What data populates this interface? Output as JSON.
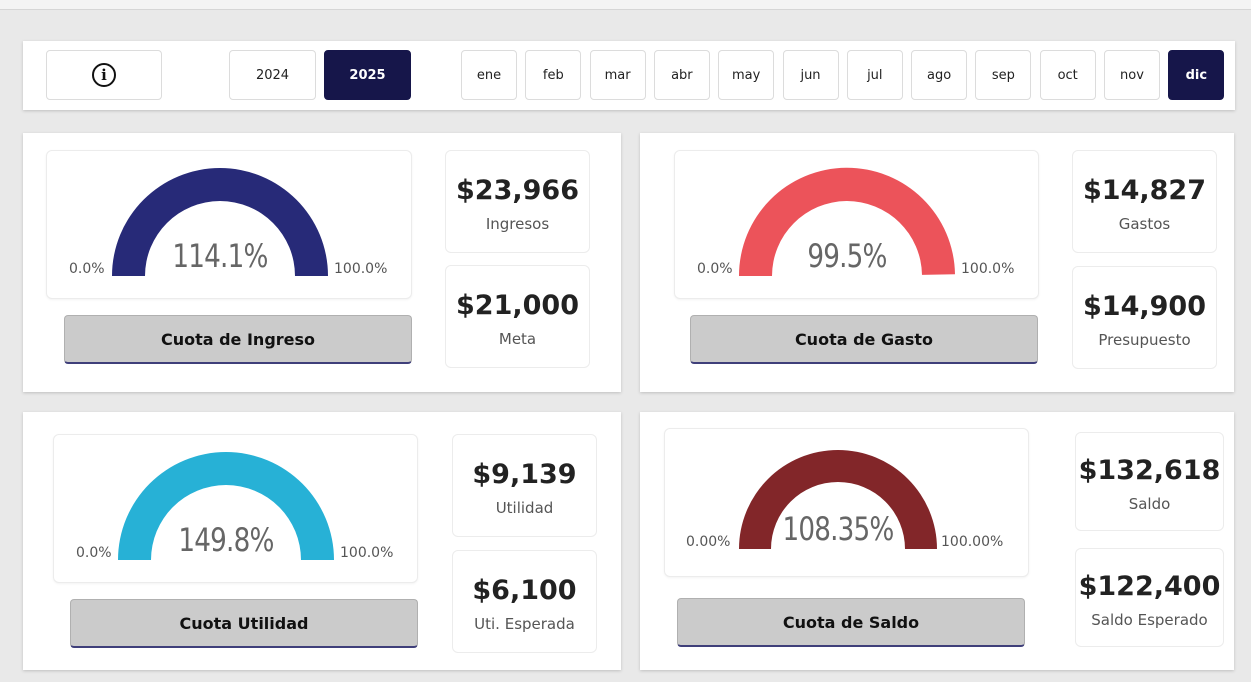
{
  "filters": {
    "info_glyph": "i",
    "years": [
      {
        "label": "2024",
        "selected": false
      },
      {
        "label": "2025",
        "selected": true
      }
    ],
    "months": [
      {
        "label": "ene",
        "selected": false
      },
      {
        "label": "feb",
        "selected": false
      },
      {
        "label": "mar",
        "selected": false
      },
      {
        "label": "abr",
        "selected": false
      },
      {
        "label": "may",
        "selected": false
      },
      {
        "label": "jun",
        "selected": false
      },
      {
        "label": "jul",
        "selected": false
      },
      {
        "label": "ago",
        "selected": false
      },
      {
        "label": "sep",
        "selected": false
      },
      {
        "label": "oct",
        "selected": false
      },
      {
        "label": "nov",
        "selected": false
      },
      {
        "label": "dic",
        "selected": true
      }
    ],
    "selected_color": "#16164a"
  },
  "ingreso": {
    "gauge": {
      "value": "114.1%",
      "min": "0.0%",
      "max": "100.0%",
      "fraction": 1.141,
      "color": "#272a78"
    },
    "button": "Cuota de Ingreso",
    "kpi1": {
      "value": "$23,966",
      "label": "Ingresos"
    },
    "kpi2": {
      "value": "$21,000",
      "label": "Meta"
    }
  },
  "gasto": {
    "gauge": {
      "value": "99.5%",
      "min": "0.0%",
      "max": "100.0%",
      "fraction": 0.995,
      "color": "#ec535a"
    },
    "button": "Cuota de Gasto",
    "kpi1": {
      "value": "$14,827",
      "label": "Gastos"
    },
    "kpi2": {
      "value": "$14,900",
      "label": "Presupuesto"
    }
  },
  "utilidad": {
    "gauge": {
      "value": "149.8%",
      "min": "0.0%",
      "max": "100.0%",
      "fraction": 1.498,
      "color": "#27b1d6"
    },
    "button": "Cuota Utilidad",
    "kpi1": {
      "value": "$9,139",
      "label": "Utilidad"
    },
    "kpi2": {
      "value": "$6,100",
      "label": "Uti. Esperada"
    }
  },
  "saldo": {
    "gauge": {
      "value": "108.35%",
      "min": "0.00%",
      "max": "100.00%",
      "fraction": 1.0835,
      "color": "#822629"
    },
    "button": "Cuota de Saldo",
    "kpi1": {
      "value": "$132,618",
      "label": "Saldo"
    },
    "kpi2": {
      "value": "$122,400",
      "label": "Saldo Esperado"
    }
  }
}
